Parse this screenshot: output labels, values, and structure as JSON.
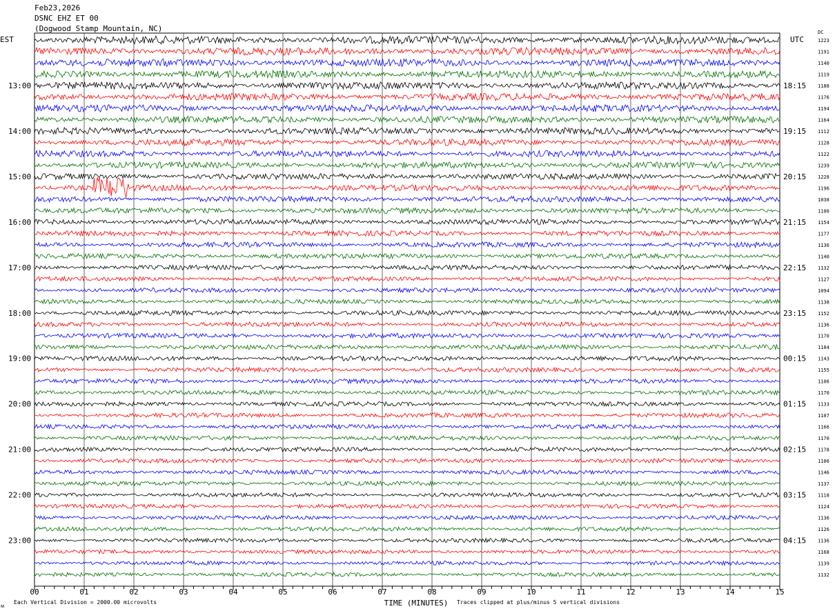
{
  "header": {
    "date": "Feb23,2026",
    "station": "DSNC EHZ ET 00",
    "location": "(Dogwood Stamp Mountain, NC)"
  },
  "chart_data": {
    "type": "line",
    "subtype": "helicorder",
    "left_timezone": "EST",
    "right_timezone": "UTC",
    "dc_header": "DC",
    "xlabel": "TIME (MINUTES)",
    "xlim": [
      0,
      15
    ],
    "x_ticks": [
      "00",
      "01",
      "02",
      "03",
      "04",
      "05",
      "06",
      "07",
      "08",
      "09",
      "10",
      "11",
      "12",
      "13",
      "14",
      "15"
    ],
    "grid": true,
    "trace_colors": [
      "#000000",
      "#ff0000",
      "#0000ff",
      "#007000"
    ],
    "minutes_per_trace": 15,
    "left_hour_labels": [
      "13:00",
      "14:00",
      "15:00",
      "16:00",
      "17:00",
      "18:00",
      "19:00",
      "20:00",
      "21:00",
      "22:00",
      "23:00"
    ],
    "right_hour_labels": [
      "18:15",
      "19:15",
      "20:15",
      "21:15",
      "22:15",
      "23:15",
      "00:15",
      "01:15",
      "02:15",
      "03:15",
      "04:15"
    ],
    "dc_offsets": [
      1223,
      1191,
      1140,
      1119,
      1188,
      1176,
      1194,
      1164,
      1112,
      1128,
      1122,
      1239,
      1228,
      1196,
      1038,
      1100,
      1154,
      1177,
      1136,
      1140,
      1132,
      1127,
      1094,
      1138,
      1152,
      1136,
      1170,
      1184,
      1143,
      1155,
      1106,
      1170,
      1133,
      1107,
      1166,
      1170,
      1178,
      1106,
      1146,
      1137,
      1118,
      1124,
      1136,
      1126,
      1136,
      1168,
      1139,
      1132
    ],
    "footer_left": "Each Vertical Division = 2000.00 microvolts",
    "footer_right": "Traces clipped at plus/minus 5 vertical divisions"
  }
}
